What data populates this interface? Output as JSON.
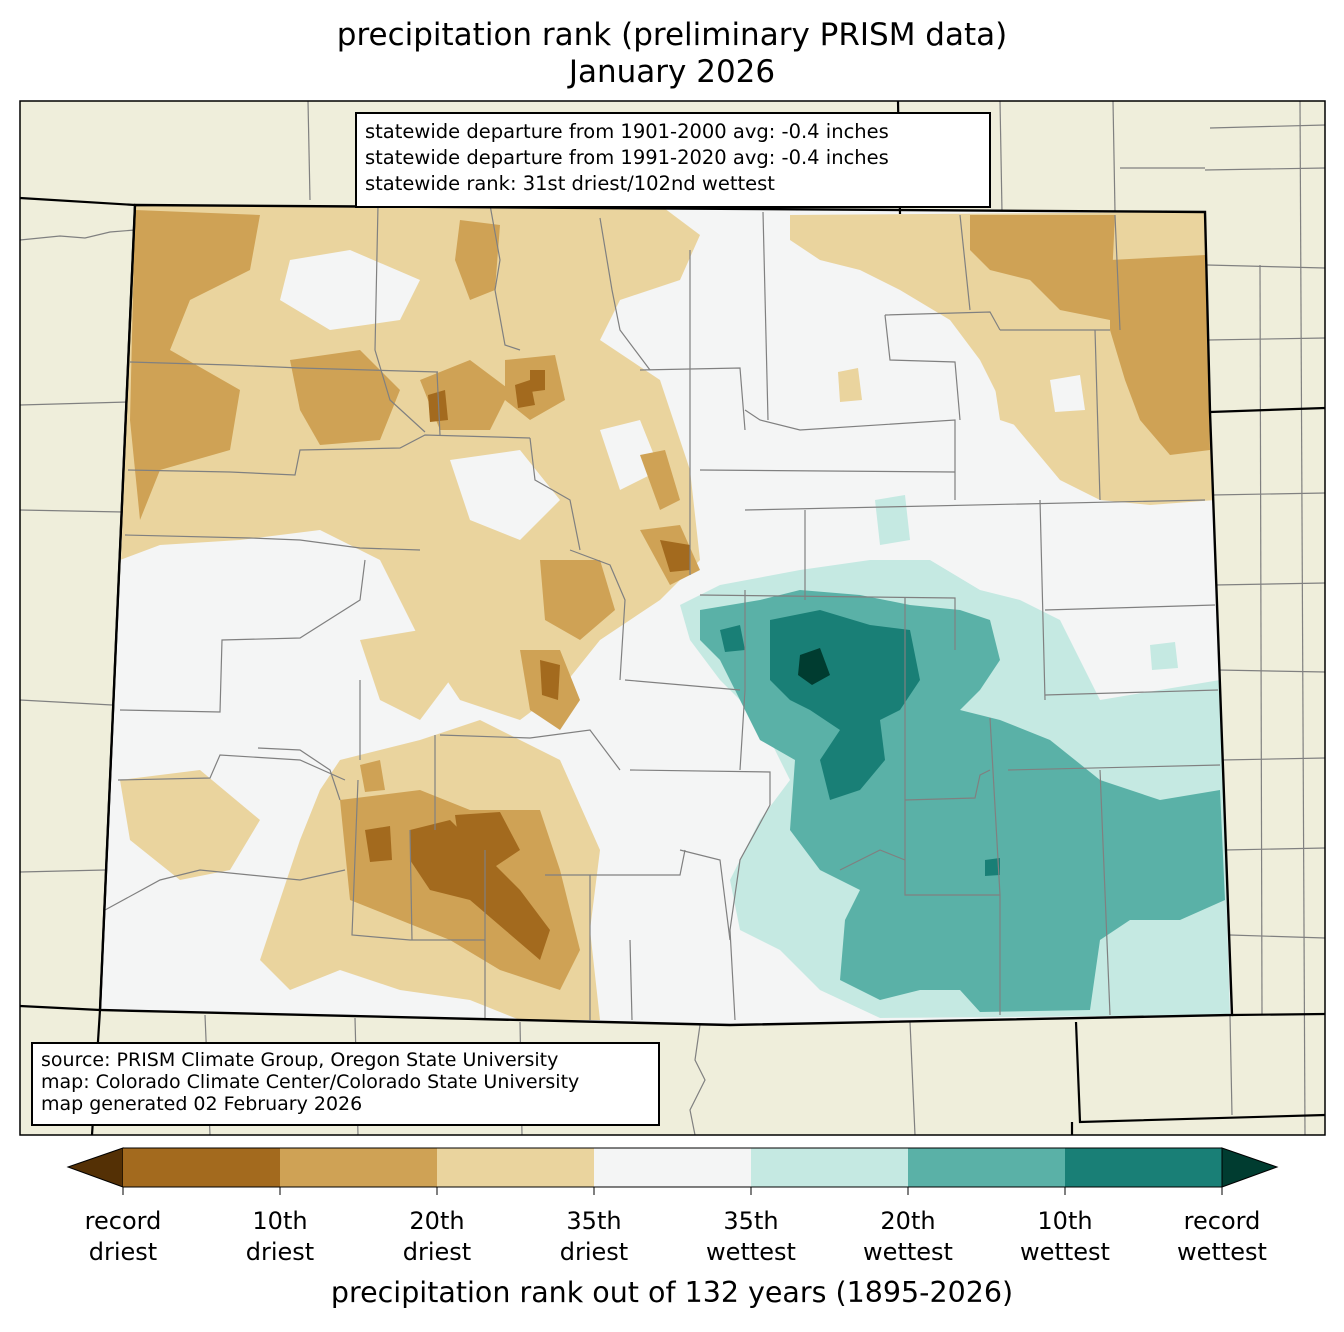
{
  "title": {
    "line1": "precipitation rank (preliminary PRISM data)",
    "line2": "January 2026"
  },
  "stats_box": {
    "line1": "statewide departure from 1901-2000 avg: -0.4 inches",
    "line2": "statewide departure from 1991-2020 avg: -0.4 inches",
    "line3": "statewide rank: 31st driest/102nd wettest"
  },
  "source_box": {
    "line1": "source: PRISM Climate Group, Oregon State University",
    "line2": "map: Colorado Climate Center/Colorado State University",
    "line3": "map generated 02 February 2026"
  },
  "colorbar": {
    "label": "precipitation rank out of 132 years (1895-2026)",
    "ticks": [
      {
        "line1": "record",
        "line2": "driest"
      },
      {
        "line1": "10th",
        "line2": "driest"
      },
      {
        "line1": "20th",
        "line2": "driest"
      },
      {
        "line1": "35th",
        "line2": "driest"
      },
      {
        "line1": "35th",
        "line2": "wettest"
      },
      {
        "line1": "20th",
        "line2": "wettest"
      },
      {
        "line1": "10th",
        "line2": "wettest"
      },
      {
        "line1": "record",
        "line2": "wettest"
      }
    ],
    "colors": [
      "#543005",
      "#a36a1e",
      "#cfa255",
      "#ead49e",
      "#f4f5f5",
      "#c5e9e2",
      "#5ab1a7",
      "#197f76",
      "#003c30"
    ]
  },
  "colors": {
    "land_outside": "#efeedb",
    "state_boundary": "#000000",
    "county_lines": "#808080"
  }
}
